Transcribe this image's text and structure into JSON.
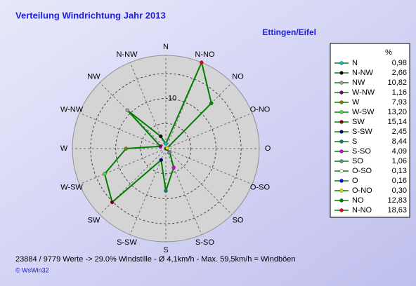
{
  "chart_data": {
    "type": "radar",
    "title": "Verteilung Windrichtung    Jahr 2013",
    "subtitle": "Ettingen/Eifel",
    "unit_header": "%",
    "categories": [
      "N",
      "N-NW",
      "NW",
      "W-NW",
      "W",
      "W-SW",
      "SW",
      "S-SW",
      "S",
      "S-SO",
      "SO",
      "O-SO",
      "O",
      "O-NO",
      "NO",
      "N-NO"
    ],
    "values": [
      0.98,
      2.66,
      10.82,
      1.16,
      7.93,
      13.2,
      15.14,
      2.45,
      8.44,
      4.09,
      1.06,
      0.13,
      0.16,
      0.3,
      12.83,
      18.63
    ],
    "value_labels": [
      "0,98",
      "2,66",
      "10,82",
      "1,16",
      "7,93",
      "13,20",
      "15,14",
      "2,45",
      "8,44",
      "4,09",
      "1,06",
      "0,13",
      "0,16",
      "0,30",
      "12,83",
      "18,63"
    ],
    "marker_colors": [
      "#00c0c0",
      "#000000",
      "#a0a0a0",
      "#800080",
      "#808000",
      "#40e040",
      "#800000",
      "#000080",
      "#008080",
      "#e000e0",
      "#7080a0",
      "#ffffff",
      "#0000ff",
      "#e0e000",
      "#008000",
      "#ff0000"
    ],
    "line_color": "#008000",
    "rlim": [
      0,
      18.63
    ],
    "rticks": [
      5,
      10,
      15
    ],
    "rtick_labels": [
      null,
      "10",
      null
    ],
    "footer": "23884 / 9779 Werte  -> 29.0% Windstille   -   Ø 4,1km/h  -  Max. 59,5km/h = Windböen",
    "credit": "© WsWin32"
  }
}
